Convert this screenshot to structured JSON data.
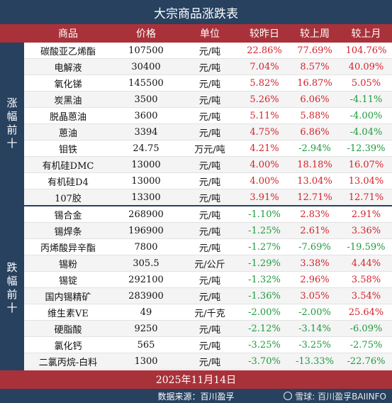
{
  "title": "大宗商品涨跌表",
  "headers": {
    "name": "商品",
    "price": "价格",
    "unit": "单位",
    "day": "较昨日",
    "week": "较上周",
    "month": "较上月"
  },
  "sections": {
    "gainers_label": "涨幅前十",
    "losers_label": "跌幅前十"
  },
  "gainers": [
    {
      "name": "碳酸亚乙烯酯",
      "price": "107500",
      "unit": "元/吨",
      "day": "22.86%",
      "week": "77.69%",
      "month": "104.76%"
    },
    {
      "name": "电解液",
      "price": "30400",
      "unit": "元/吨",
      "day": "7.04%",
      "week": "8.57%",
      "month": "40.09%"
    },
    {
      "name": "氧化锑",
      "price": "145500",
      "unit": "元/吨",
      "day": "5.82%",
      "week": "16.87%",
      "month": "5.05%"
    },
    {
      "name": "炭黑油",
      "price": "3500",
      "unit": "元/吨",
      "day": "5.26%",
      "week": "6.06%",
      "month": "-4.11%"
    },
    {
      "name": "脱晶蒽油",
      "price": "3600",
      "unit": "元/吨",
      "day": "5.11%",
      "week": "5.88%",
      "month": "-4.00%"
    },
    {
      "name": "蒽油",
      "price": "3394",
      "unit": "元/吨",
      "day": "4.75%",
      "week": "6.86%",
      "month": "-4.04%"
    },
    {
      "name": "钼铁",
      "price": "24.75",
      "unit": "万元/吨",
      "day": "4.21%",
      "week": "-2.94%",
      "month": "-12.39%"
    },
    {
      "name": "有机硅DMC",
      "price": "13000",
      "unit": "元/吨",
      "day": "4.00%",
      "week": "18.18%",
      "month": "16.07%"
    },
    {
      "name": "有机硅D4",
      "price": "13000",
      "unit": "元/吨",
      "day": "4.00%",
      "week": "13.04%",
      "month": "13.04%"
    },
    {
      "name": "107胶",
      "price": "13300",
      "unit": "元/吨",
      "day": "3.91%",
      "week": "12.71%",
      "month": "12.71%"
    }
  ],
  "losers": [
    {
      "name": "锡合金",
      "price": "268900",
      "unit": "元/吨",
      "day": "-1.10%",
      "week": "2.83%",
      "month": "2.91%"
    },
    {
      "name": "锡焊条",
      "price": "196900",
      "unit": "元/吨",
      "day": "-1.25%",
      "week": "2.61%",
      "month": "3.36%"
    },
    {
      "name": "丙烯酸异辛酯",
      "price": "7800",
      "unit": "元/吨",
      "day": "-1.27%",
      "week": "-7.69%",
      "month": "-19.59%"
    },
    {
      "name": "锡粉",
      "price": "305.5",
      "unit": "元/公斤",
      "day": "-1.29%",
      "week": "3.38%",
      "month": "4.44%"
    },
    {
      "name": "锡锭",
      "price": "292100",
      "unit": "元/吨",
      "day": "-1.32%",
      "week": "2.96%",
      "month": "3.58%"
    },
    {
      "name": "国内锡精矿",
      "price": "283900",
      "unit": "元/吨",
      "day": "-1.36%",
      "week": "3.05%",
      "month": "3.54%"
    },
    {
      "name": "维生素VE",
      "price": "49",
      "unit": "元/千克",
      "day": "-2.00%",
      "week": "-2.00%",
      "month": "25.64%"
    },
    {
      "name": "硬脂酸",
      "price": "9250",
      "unit": "元/吨",
      "day": "-2.12%",
      "week": "-3.14%",
      "month": "-6.09%"
    },
    {
      "name": "氯化钙",
      "price": "565",
      "unit": "元/吨",
      "day": "-3.25%",
      "week": "-3.25%",
      "month": "-2.75%"
    },
    {
      "name": "二氯丙烷-白料",
      "price": "1300",
      "unit": "元/吨",
      "day": "-3.70%",
      "week": "-13.33%",
      "month": "-22.76%"
    }
  ],
  "footer": {
    "date": "2025年11月14日",
    "source": "数据来源：百川盈孚",
    "watermark": "雪球: 百川盈孚BAIINFO"
  },
  "colors": {
    "navy": "#27415f",
    "red_band": "#a9323a",
    "up": "#d3222a",
    "down": "#1e9a3c"
  }
}
